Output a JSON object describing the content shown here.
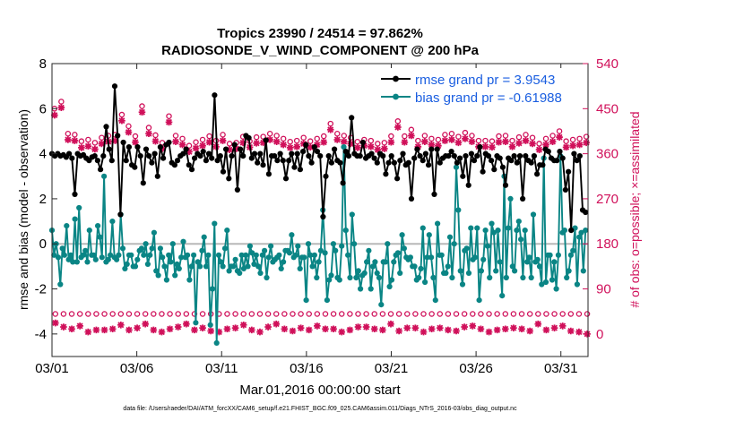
{
  "chart_data": {
    "type": "line",
    "title": "Tropics 23990 / 24514 = 97.862%",
    "subtitle": "RADIOSONDE_V_WIND_COMPONENT @ 200 hPa",
    "xlabel": "Mar.01,2016 00:00:00 start",
    "ylabel": "rmse and bias (model - observation)",
    "y2label": "# of obs: o=possible; ×=assimilated",
    "footnote": "data file: /Users/raeder/DAI/ATM_forcXX/CAM6_setup/f.e21.FHIST_BGC.f09_025.CAM6assim.011/Diags_NTrS_2016-03/obs_diag_output.nc",
    "xlim": [
      0,
      31.6
    ],
    "ylim": [
      -5,
      8
    ],
    "y2lim": [
      -45,
      540
    ],
    "x_ticks": [
      0,
      5,
      10,
      15,
      20,
      25,
      30
    ],
    "x_tick_labels": [
      "03/01",
      "03/06",
      "03/11",
      "03/16",
      "03/21",
      "03/26",
      "03/31"
    ],
    "y_ticks": [
      -4,
      -2,
      0,
      2,
      4,
      6,
      8
    ],
    "y2_ticks": [
      0,
      90,
      180,
      270,
      360,
      450,
      540
    ],
    "legend_position": "top-right",
    "colors": {
      "rmse": "#000000",
      "bias": "#0a8585",
      "obs": "#d0105a",
      "legend_text": "#1a5ee0",
      "zero_line": "#b8b8b8"
    },
    "series": [
      {
        "name": "rmse grand pr = 3.9543",
        "values": [
          4.0,
          3.9,
          4.0,
          3.9,
          3.95,
          3.85,
          4.0,
          3.8,
          2.2,
          4.0,
          3.9,
          3.95,
          3.8,
          3.7,
          3.85,
          3.9,
          3.7,
          3.3,
          3.9,
          5.2,
          4.2,
          3.7,
          7.0,
          4.8,
          1.3,
          4.5,
          3.7,
          4.3,
          3.5,
          3.4,
          4.3,
          3.9,
          2.7,
          4.2,
          3.9,
          3.6,
          4.0,
          3.0,
          4.3,
          3.8,
          4.4,
          4.5,
          3.6,
          3.5,
          3.7,
          3.9,
          4.0,
          4.2,
          3.5,
          3.3,
          3.8,
          4.0,
          3.9,
          4.1,
          3.7,
          4.0,
          3.8,
          6.6,
          3.7,
          3.9,
          3.2,
          4.2,
          2.9,
          3.9,
          4.4,
          2.4,
          4.2,
          3.9,
          4.8,
          4.7,
          3.8,
          4.0,
          3.6,
          4.0,
          3.5,
          4.6,
          3.1,
          3.9,
          3.9,
          3.7,
          4.0,
          3.7,
          2.9,
          3.7,
          4.0,
          3.4,
          4.0,
          3.3,
          4.1,
          4.4,
          3.9,
          3.6,
          4.3,
          4.1,
          3.9,
          1.2,
          3.0,
          3.9,
          3.6,
          4.2,
          3.7,
          3.6,
          2.7,
          4.1,
          3.9,
          5.6,
          4.0,
          3.9,
          3.9,
          4.5,
          3.8,
          3.9,
          4.0,
          3.8,
          3.6,
          4.0,
          3.9,
          3.1,
          3.6,
          3.9,
          3.6,
          2.9,
          3.7,
          4.0,
          3.5,
          3.6,
          2.0,
          3.8,
          4.2,
          3.9,
          3.7,
          4.0,
          3.5,
          4.2,
          2.2,
          4.2,
          3.6,
          3.8,
          3.9,
          3.9,
          4.1,
          3.9,
          3.6,
          3.8,
          3.0,
          3.9,
          2.6,
          4.0,
          3.7,
          3.9,
          4.3,
          3.2,
          4.0,
          3.9,
          3.7,
          3.3,
          3.9,
          3.8,
          3.4,
          2.6,
          3.8,
          3.7,
          3.9,
          3.6,
          3.9,
          2.0,
          3.9,
          3.7,
          3.6,
          3.9,
          3.1,
          3.5,
          3.5,
          4.2,
          4.1,
          3.8,
          3.7,
          3.7,
          4.1,
          3.8,
          2.4,
          3.2,
          0.6,
          4.0,
          3.7,
          3.9,
          1.5,
          1.4
        ]
      },
      {
        "name": "bias grand pr = -0.61988",
        "values": [
          0.6,
          -0.5,
          0.0,
          -0.6,
          -1.8,
          -0.2,
          -0.5,
          0.8,
          -0.7,
          -0.5,
          -0.8,
          1.1,
          -0.8,
          1.6,
          -0.6,
          -0.5,
          -0.3,
          -0.8,
          0.6,
          -0.5,
          -0.5,
          -0.7,
          0.8,
          0.3,
          -0.6,
          3.0,
          -0.8,
          -0.7,
          -0.5,
          1.0,
          -0.6,
          -0.7,
          -0.5,
          1.3,
          -0.2,
          -1.1,
          -0.9,
          -0.5,
          -0.5,
          -1.0,
          -1.0,
          -0.7,
          -0.3,
          -0.2,
          -0.5,
          0.0,
          -0.9,
          -0.5,
          -0.2,
          0.5,
          -1.2,
          -1.4,
          -0.2,
          -0.6,
          -1.0,
          -1.6,
          -0.5,
          -0.8,
          0.0,
          -1.4,
          -0.9,
          -1.1,
          -0.6,
          0.1,
          -0.6,
          -0.5,
          -1.6,
          -1.0,
          -0.5,
          -3.5,
          -0.8,
          -1.0,
          -0.3,
          0.3,
          -1.0,
          -0.5,
          -3.6,
          -2.0,
          0.9,
          -4.4,
          -0.5,
          -0.8,
          -1.0,
          -0.2,
          0.6,
          -1.2,
          -1.0,
          -1.0,
          -0.7,
          -1.2,
          -1.3,
          -0.5,
          -1.1,
          -0.5,
          -1.0,
          -0.1,
          -0.4,
          -0.9,
          -0.5,
          -1.0,
          -1.3,
          -0.5,
          -0.3,
          -1.5,
          -0.6,
          -0.1,
          -0.8,
          -0.7,
          -0.6,
          -0.5,
          -1.1,
          -0.8,
          -0.3,
          -0.3,
          -0.4,
          0.4,
          -0.6,
          -0.5,
          -0.1,
          -1.1,
          -0.6,
          -0.6,
          -2.5,
          0.0,
          -0.5,
          -1.0,
          -0.5,
          -1.5,
          -0.8,
          -0.3,
          1.5,
          -0.4,
          -2.5,
          -1.6,
          -1.4,
          0.0,
          -0.3,
          -1.5,
          -1.6,
          -0.1,
          4.3,
          0.6,
          -0.5,
          -1.5,
          1.3,
          0.0,
          -1.5,
          -1.2,
          -2.0,
          -1.4,
          -1.3,
          -0.8,
          -0.3,
          -2.0,
          -1.0,
          -0.8,
          -1.3,
          -1.5,
          -2.7,
          -0.8,
          -0.8,
          0.0,
          -1.9,
          -1.6,
          -0.8,
          -0.5,
          -0.4,
          -1.3,
          0.4,
          -0.2,
          -0.6,
          -0.7,
          -0.6,
          -1.0,
          -1.0,
          -1.6,
          -1.5,
          -1.1,
          0.7,
          -1.7,
          -0.6,
          0.4,
          -0.6,
          -1.5,
          -2.5,
          0.9,
          -0.5,
          -0.5,
          -1.3,
          -1.3,
          -1.0,
          0.3,
          -1.5,
          0.0,
          3.4,
          1.5,
          -1.2,
          -1.8,
          -0.3,
          -0.2,
          -1.3,
          0.7,
          -0.7,
          -0.6,
          0.7,
          -2.5,
          -1.2,
          -0.7,
          0.6,
          -0.1,
          -1.5,
          0.9,
          0.5,
          -1.2,
          0.6,
          -0.8,
          -2.3,
          3.0,
          -1.5,
          0.7,
          2.0,
          -1.0,
          -1.2,
          0.6,
          1.0,
          0.2,
          -1.5,
          0.6,
          -0.8,
          -0.6,
          -1.5,
          1.3,
          -0.8,
          -0.7,
          -1.0,
          -1.8,
          3.8,
          -1.7,
          -0.5,
          -0.5,
          -1.6,
          -0.8,
          -2.0,
          -0.5,
          3.9,
          0.5,
          0.6,
          -1.5,
          -1.2,
          -0.5,
          -0.3,
          0.7,
          -1.8,
          0.3,
          0.5,
          -1.2,
          0.6
        ]
      }
    ],
    "obs_possible": {
      "day_values": [
        450,
        464,
        400,
        398,
        385,
        388,
        382,
        392,
        396,
        398,
        438,
        415,
        395,
        455,
        412,
        397,
        382,
        435,
        396,
        390,
        376,
        383,
        388,
        395,
        386,
        398,
        380,
        382,
        394,
        385,
        393,
        394,
        400,
        396,
        390,
        384,
        386,
        392,
        385,
        390,
        395,
        420,
        400,
        396,
        392,
        384,
        388,
        386,
        380,
        382,
        395,
        425,
        395,
        408,
        386,
        396,
        390,
        388,
        398,
        400,
        394,
        402,
        396,
        386,
        386,
        385,
        395,
        396,
        386,
        393,
        398,
        392,
        380,
        390,
        396,
        405,
        385,
        388,
        390,
        394
      ],
      "night_values": [
        40,
        40,
        40,
        40,
        40,
        40,
        40,
        40,
        40,
        40,
        40,
        40,
        40,
        40,
        40,
        40,
        40,
        40,
        40,
        40,
        40,
        40,
        40,
        40,
        40,
        40,
        40,
        40,
        40,
        40,
        40,
        40,
        40,
        40,
        40,
        40,
        40,
        40,
        40,
        40,
        40,
        40,
        40,
        40,
        40,
        40,
        40,
        40,
        40,
        40,
        40,
        40,
        40,
        40,
        40,
        40,
        40,
        40,
        40,
        40,
        40,
        40,
        40,
        40,
        40,
        40
      ]
    },
    "obs_assimilated": {
      "day_values": [
        437,
        452,
        388,
        386,
        372,
        375,
        369,
        380,
        384,
        386,
        426,
        403,
        383,
        443,
        400,
        385,
        370,
        423,
        384,
        378,
        364,
        371,
        376,
        383,
        374,
        386,
        368,
        370,
        382,
        373,
        381,
        382,
        388,
        384,
        378,
        372,
        374,
        380,
        373,
        378,
        383,
        408,
        388,
        384,
        380,
        372,
        376,
        374,
        368,
        370,
        383,
        413,
        383,
        396,
        374,
        384,
        378,
        376,
        386,
        388,
        382,
        390,
        384,
        374,
        374,
        373,
        383,
        384,
        374,
        381,
        386,
        380,
        368,
        378,
        384,
        393,
        373,
        376,
        378,
        382
      ],
      "night_values": [
        22,
        14,
        10,
        16,
        4,
        8,
        8,
        10,
        18,
        8,
        12,
        20,
        8,
        4,
        10,
        14,
        20,
        8,
        12,
        6,
        4,
        10,
        12,
        18,
        8,
        4,
        14,
        20,
        10,
        6,
        12,
        8,
        16,
        10,
        10,
        4,
        8,
        14,
        14,
        10,
        8,
        20,
        6,
        12,
        12,
        4,
        10,
        12,
        8,
        6,
        14,
        16,
        10,
        4,
        8,
        10,
        12,
        10,
        6,
        20,
        8,
        12,
        16,
        6,
        4,
        0
      ]
    }
  }
}
